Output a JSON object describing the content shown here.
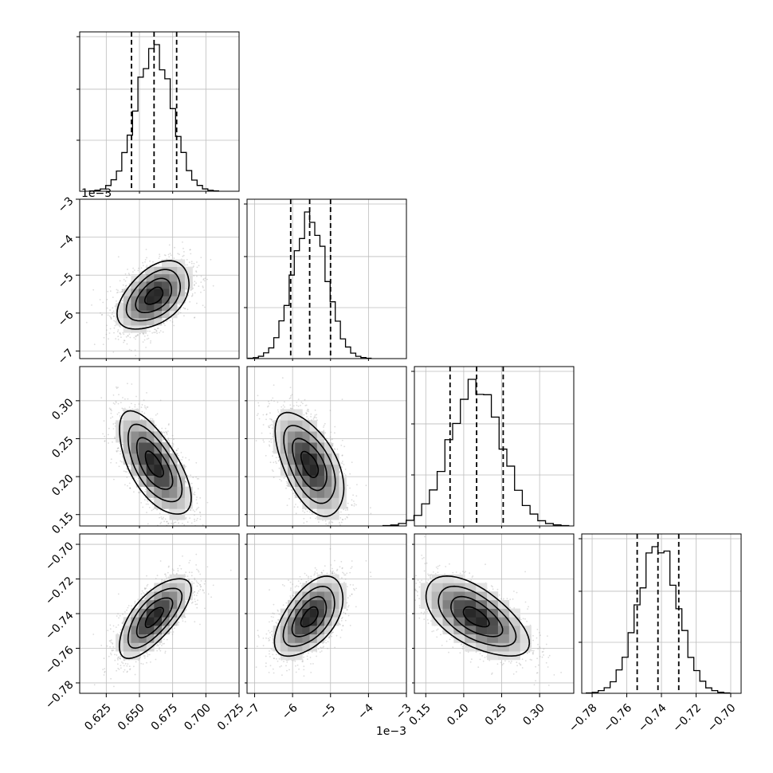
{
  "chart_data": {
    "type": "corner",
    "title": "",
    "parameters": [
      {
        "range": [
          0.605,
          0.725
        ],
        "ticks": [
          0.625,
          0.65,
          0.675,
          0.7,
          0.725
        ],
        "tick_labels": [
          "0.625",
          "0.650",
          "0.675",
          "0.700",
          "0.725"
        ],
        "offset_label": "",
        "mean": 0.661,
        "sd": 0.0135,
        "quantiles": [
          0.644,
          0.661,
          0.678
        ]
      },
      {
        "range": [
          -7.2,
          -3.0
        ],
        "ticks": [
          -7,
          -6,
          -5,
          -4,
          -3
        ],
        "tick_labels": [
          "−7",
          "−6",
          "−5",
          "−4",
          "−3"
        ],
        "offset_label": "1e−3",
        "mean": -5.55,
        "sd": 0.45,
        "quantiles": [
          -6.05,
          -5.55,
          -5.0
        ]
      },
      {
        "range": [
          0.135,
          0.345
        ],
        "ticks": [
          0.15,
          0.2,
          0.25,
          0.3
        ],
        "tick_labels": [
          "0.15",
          "0.20",
          "0.25",
          "0.30"
        ],
        "offset_label": "",
        "mean": 0.216,
        "sd": 0.034,
        "quantiles": [
          0.182,
          0.217,
          0.252
        ]
      },
      {
        "range": [
          -0.786,
          -0.694
        ],
        "ticks": [
          -0.78,
          -0.76,
          -0.74,
          -0.72,
          -0.7
        ],
        "tick_labels": [
          "−0.78",
          "−0.76",
          "−0.74",
          "−0.72",
          "−0.70"
        ],
        "offset_label": "",
        "mean": -0.742,
        "sd": 0.0115,
        "quantiles": [
          -0.754,
          -0.742,
          -0.73
        ]
      }
    ],
    "correlations": [
      [
        1,
        0.45,
        -0.65,
        0.7
      ],
      [
        0.45,
        1,
        -0.55,
        0.55
      ],
      [
        -0.65,
        -0.55,
        1,
        -0.6
      ],
      [
        0.7,
        0.55,
        -0.6,
        1
      ]
    ],
    "histogram_bins": 24,
    "grid": true,
    "contour_levels": 4
  }
}
